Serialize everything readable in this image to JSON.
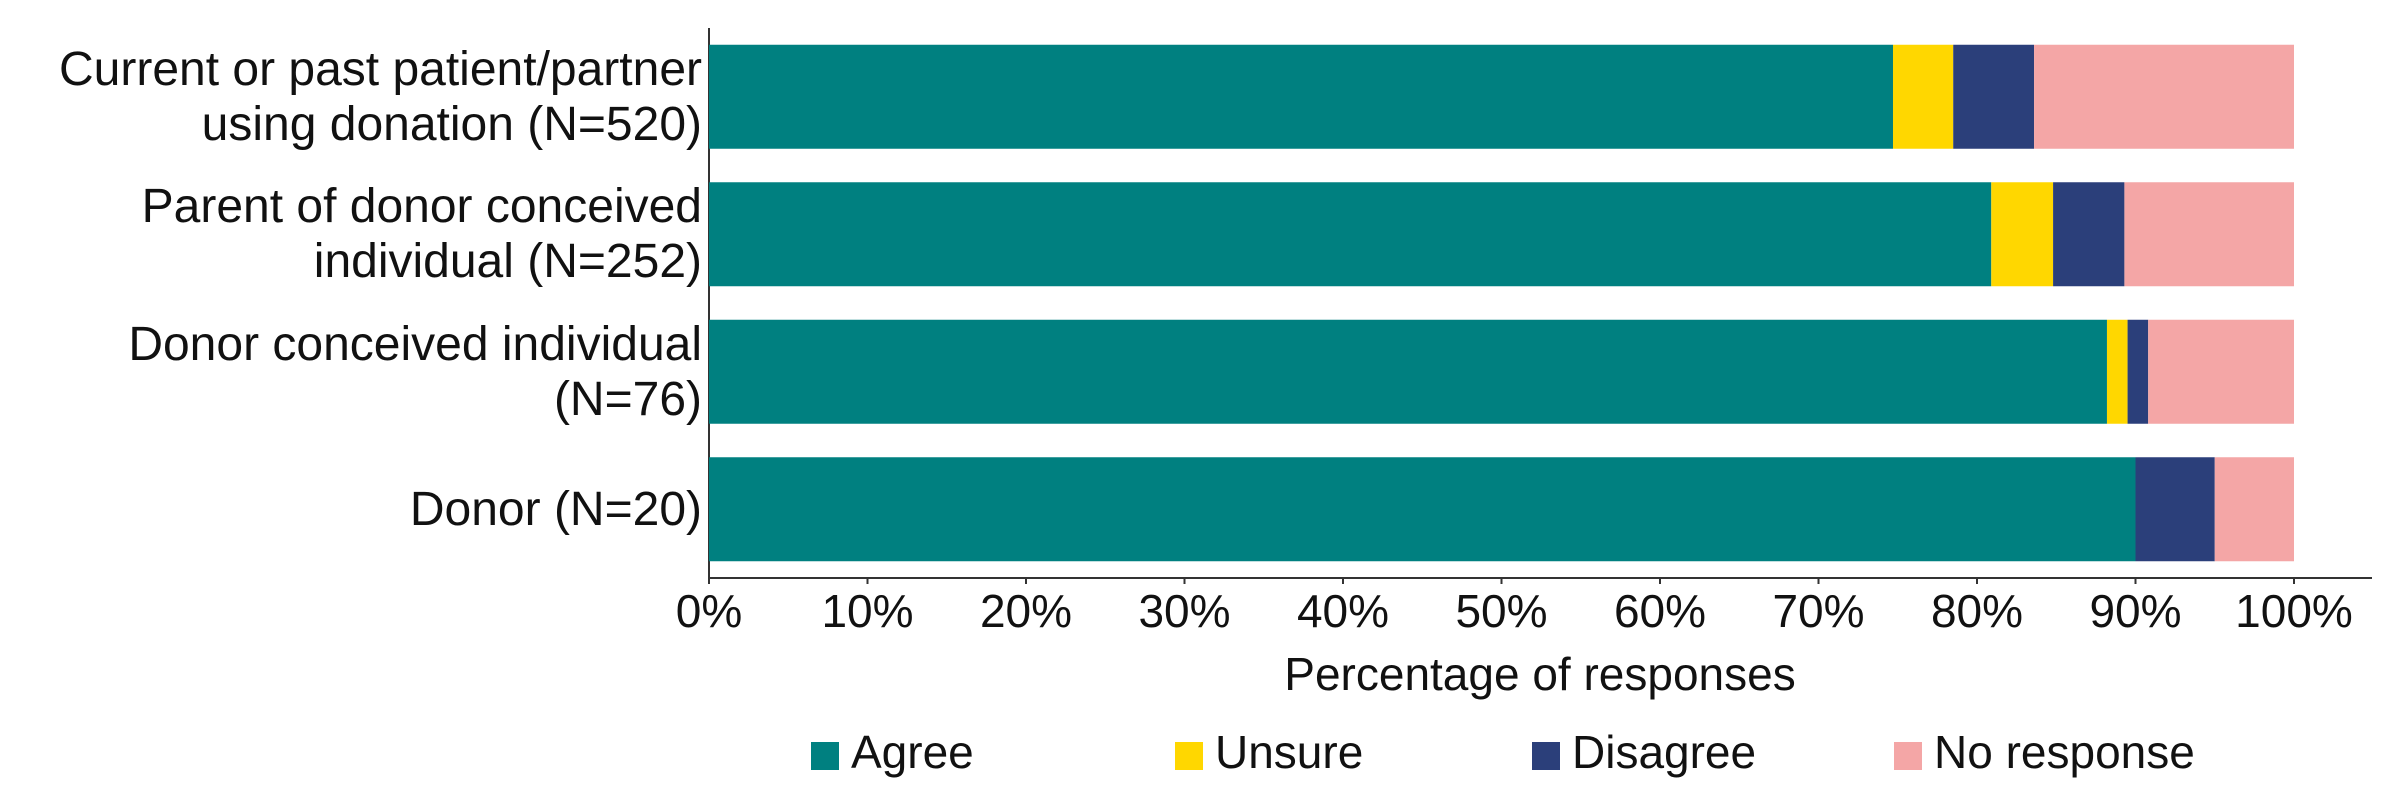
{
  "chart_data": {
    "type": "stacked_barh",
    "categories": [
      "Current or past patient/partner using donation (N=520)",
      "Parent of donor conceived individual (N=252)",
      "Donor conceived individual (N=76)",
      "Donor (N=20)"
    ],
    "series": [
      {
        "name": "Agree",
        "color": "#008080",
        "values": [
          74.7,
          80.9,
          88.2,
          90
        ]
      },
      {
        "name": "Unsure",
        "color": "#FFD700",
        "values": [
          3.8,
          3.9,
          1.3,
          0
        ]
      },
      {
        "name": "Disagree",
        "color": "#2B3F7A",
        "values": [
          5.1,
          4.5,
          1.3,
          5
        ]
      },
      {
        "name": "No response",
        "color": "#F4A6A6",
        "values": [
          16.4,
          10.7,
          9.2,
          5
        ]
      }
    ],
    "xlabel": "Percentage of responses",
    "xlim": [
      0,
      100
    ],
    "xticks": [
      {
        "value": 0,
        "label": "0%"
      },
      {
        "value": 10,
        "label": "10%"
      },
      {
        "value": 20,
        "label": "20%"
      },
      {
        "value": 30,
        "label": "30%"
      },
      {
        "value": 40,
        "label": "40%"
      },
      {
        "value": 50,
        "label": "50%"
      },
      {
        "value": 60,
        "label": "60%"
      },
      {
        "value": 70,
        "label": "70%"
      },
      {
        "value": 80,
        "label": "80%"
      },
      {
        "value": 90,
        "label": "90%"
      },
      {
        "value": 100,
        "label": "100%"
      }
    ],
    "legend": "bottom"
  }
}
